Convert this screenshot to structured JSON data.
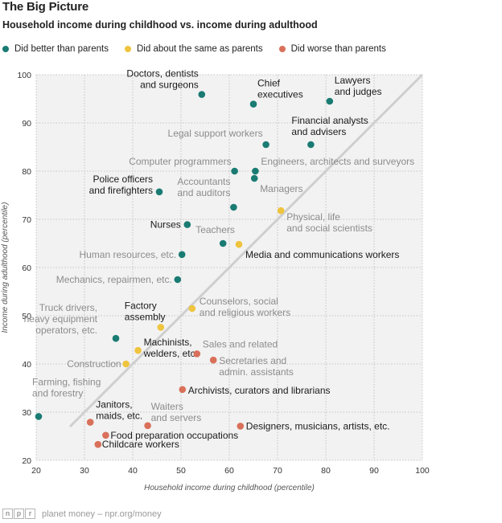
{
  "header": {
    "title": "The Big Picture",
    "subtitle": "Household income during childhood vs. income during adulthood"
  },
  "legend": {
    "items": [
      {
        "label": "Did better than parents",
        "color": "#1a7b73"
      },
      {
        "label": "Did about the same as parents",
        "color": "#efc43e"
      },
      {
        "label": "Did worse than parents",
        "color": "#d9705a"
      }
    ]
  },
  "footer": {
    "logo_letters": [
      "n",
      "p",
      "r"
    ],
    "text": "planet money – npr.org/money"
  },
  "chart_data": {
    "type": "scatter",
    "xlabel": "Household income during childhood (percentile)",
    "ylabel": "Income during adulthood (percentile)",
    "xlim": [
      20,
      100
    ],
    "ylim": [
      20,
      100
    ],
    "xticks": [
      20,
      30,
      40,
      50,
      60,
      70,
      80,
      90,
      100
    ],
    "yticks": [
      20,
      30,
      40,
      50,
      60,
      70,
      80,
      90,
      100
    ],
    "grid": true,
    "reference_line": {
      "x": [
        27,
        100
      ],
      "y": [
        27,
        100
      ]
    },
    "colors": {
      "better": "#1a7b73",
      "same": "#efc43e",
      "worse": "#d9705a"
    },
    "points": [
      {
        "x": 54.3,
        "y": 95.9,
        "group": "better",
        "label": "Doctors, dentists\nand surgeons",
        "emphasis": true
      },
      {
        "x": 65.0,
        "y": 93.9,
        "group": "better",
        "label": "Chief\nexecutives",
        "emphasis": true
      },
      {
        "x": 80.8,
        "y": 94.5,
        "group": "better",
        "label": "Lawyers\nand judges",
        "emphasis": true
      },
      {
        "x": 67.6,
        "y": 85.5,
        "group": "better",
        "label": "Legal support workers",
        "emphasis": false
      },
      {
        "x": 76.9,
        "y": 85.5,
        "group": "better",
        "label": "Financial analysts\nand advisers",
        "emphasis": true
      },
      {
        "x": 61.1,
        "y": 80.0,
        "group": "better",
        "label": "Computer programmers",
        "emphasis": false
      },
      {
        "x": 65.4,
        "y": 80.0,
        "group": "better",
        "label": "Engineers, architects and surveyors",
        "emphasis": false
      },
      {
        "x": 65.2,
        "y": 78.5,
        "group": "better",
        "label": "Managers",
        "emphasis": false
      },
      {
        "x": 45.5,
        "y": 75.7,
        "group": "better",
        "label": "Police officers\nand firefighters",
        "emphasis": true
      },
      {
        "x": 60.9,
        "y": 72.5,
        "group": "better",
        "label": "Accountants\nand auditors",
        "emphasis": false
      },
      {
        "x": 70.7,
        "y": 71.8,
        "group": "same",
        "label": "Physical, life\nand social scientists",
        "emphasis": false
      },
      {
        "x": 51.3,
        "y": 68.9,
        "group": "better",
        "label": "Nurses",
        "emphasis": true
      },
      {
        "x": 58.7,
        "y": 65.0,
        "group": "better",
        "label": "Teachers",
        "emphasis": false
      },
      {
        "x": 62.0,
        "y": 64.8,
        "group": "same",
        "label": "Media and communications workers",
        "emphasis": true
      },
      {
        "x": 50.2,
        "y": 62.7,
        "group": "better",
        "label": "Human resources, etc.",
        "emphasis": false
      },
      {
        "x": 49.3,
        "y": 57.5,
        "group": "better",
        "label": "Mechanics, repairmen, etc.",
        "emphasis": false
      },
      {
        "x": 52.3,
        "y": 51.5,
        "group": "same",
        "label": "Counselors, social\nand religious workers",
        "emphasis": false
      },
      {
        "x": 45.8,
        "y": 47.6,
        "group": "same",
        "label": "Factory\nassembly",
        "emphasis": true
      },
      {
        "x": 36.5,
        "y": 45.3,
        "group": "better",
        "label": "Truck drivers,\nheavy equipment\noperators, etc.",
        "emphasis": false
      },
      {
        "x": 41.1,
        "y": 42.8,
        "group": "same",
        "label": "Machinists,\nwelders, etc.",
        "emphasis": true
      },
      {
        "x": 53.3,
        "y": 42.1,
        "group": "worse",
        "label": "Sales and related",
        "emphasis": false
      },
      {
        "x": 38.6,
        "y": 40.0,
        "group": "same",
        "label": "Construction",
        "emphasis": false
      },
      {
        "x": 56.7,
        "y": 40.8,
        "group": "worse",
        "label": "Secretaries and\nadmin. assistants",
        "emphasis": false
      },
      {
        "x": 50.3,
        "y": 34.7,
        "group": "worse",
        "label": "Archivists, curators and librarians",
        "emphasis": true
      },
      {
        "x": 20.5,
        "y": 29.1,
        "group": "better",
        "label": "Farming, fishing\nand forestry",
        "emphasis": false
      },
      {
        "x": 31.2,
        "y": 27.9,
        "group": "worse",
        "label": "Janitors,\nmaids, etc.",
        "emphasis": true
      },
      {
        "x": 43.1,
        "y": 27.2,
        "group": "worse",
        "label": "Waiters\nand servers",
        "emphasis": false
      },
      {
        "x": 62.3,
        "y": 27.1,
        "group": "worse",
        "label": "Designers, musicians, artists, etc.",
        "emphasis": true
      },
      {
        "x": 34.4,
        "y": 25.2,
        "group": "worse",
        "label": "Food preparation occupations",
        "emphasis": true
      },
      {
        "x": 32.8,
        "y": 23.3,
        "group": "worse",
        "label": "Childcare workers",
        "emphasis": true
      }
    ]
  }
}
